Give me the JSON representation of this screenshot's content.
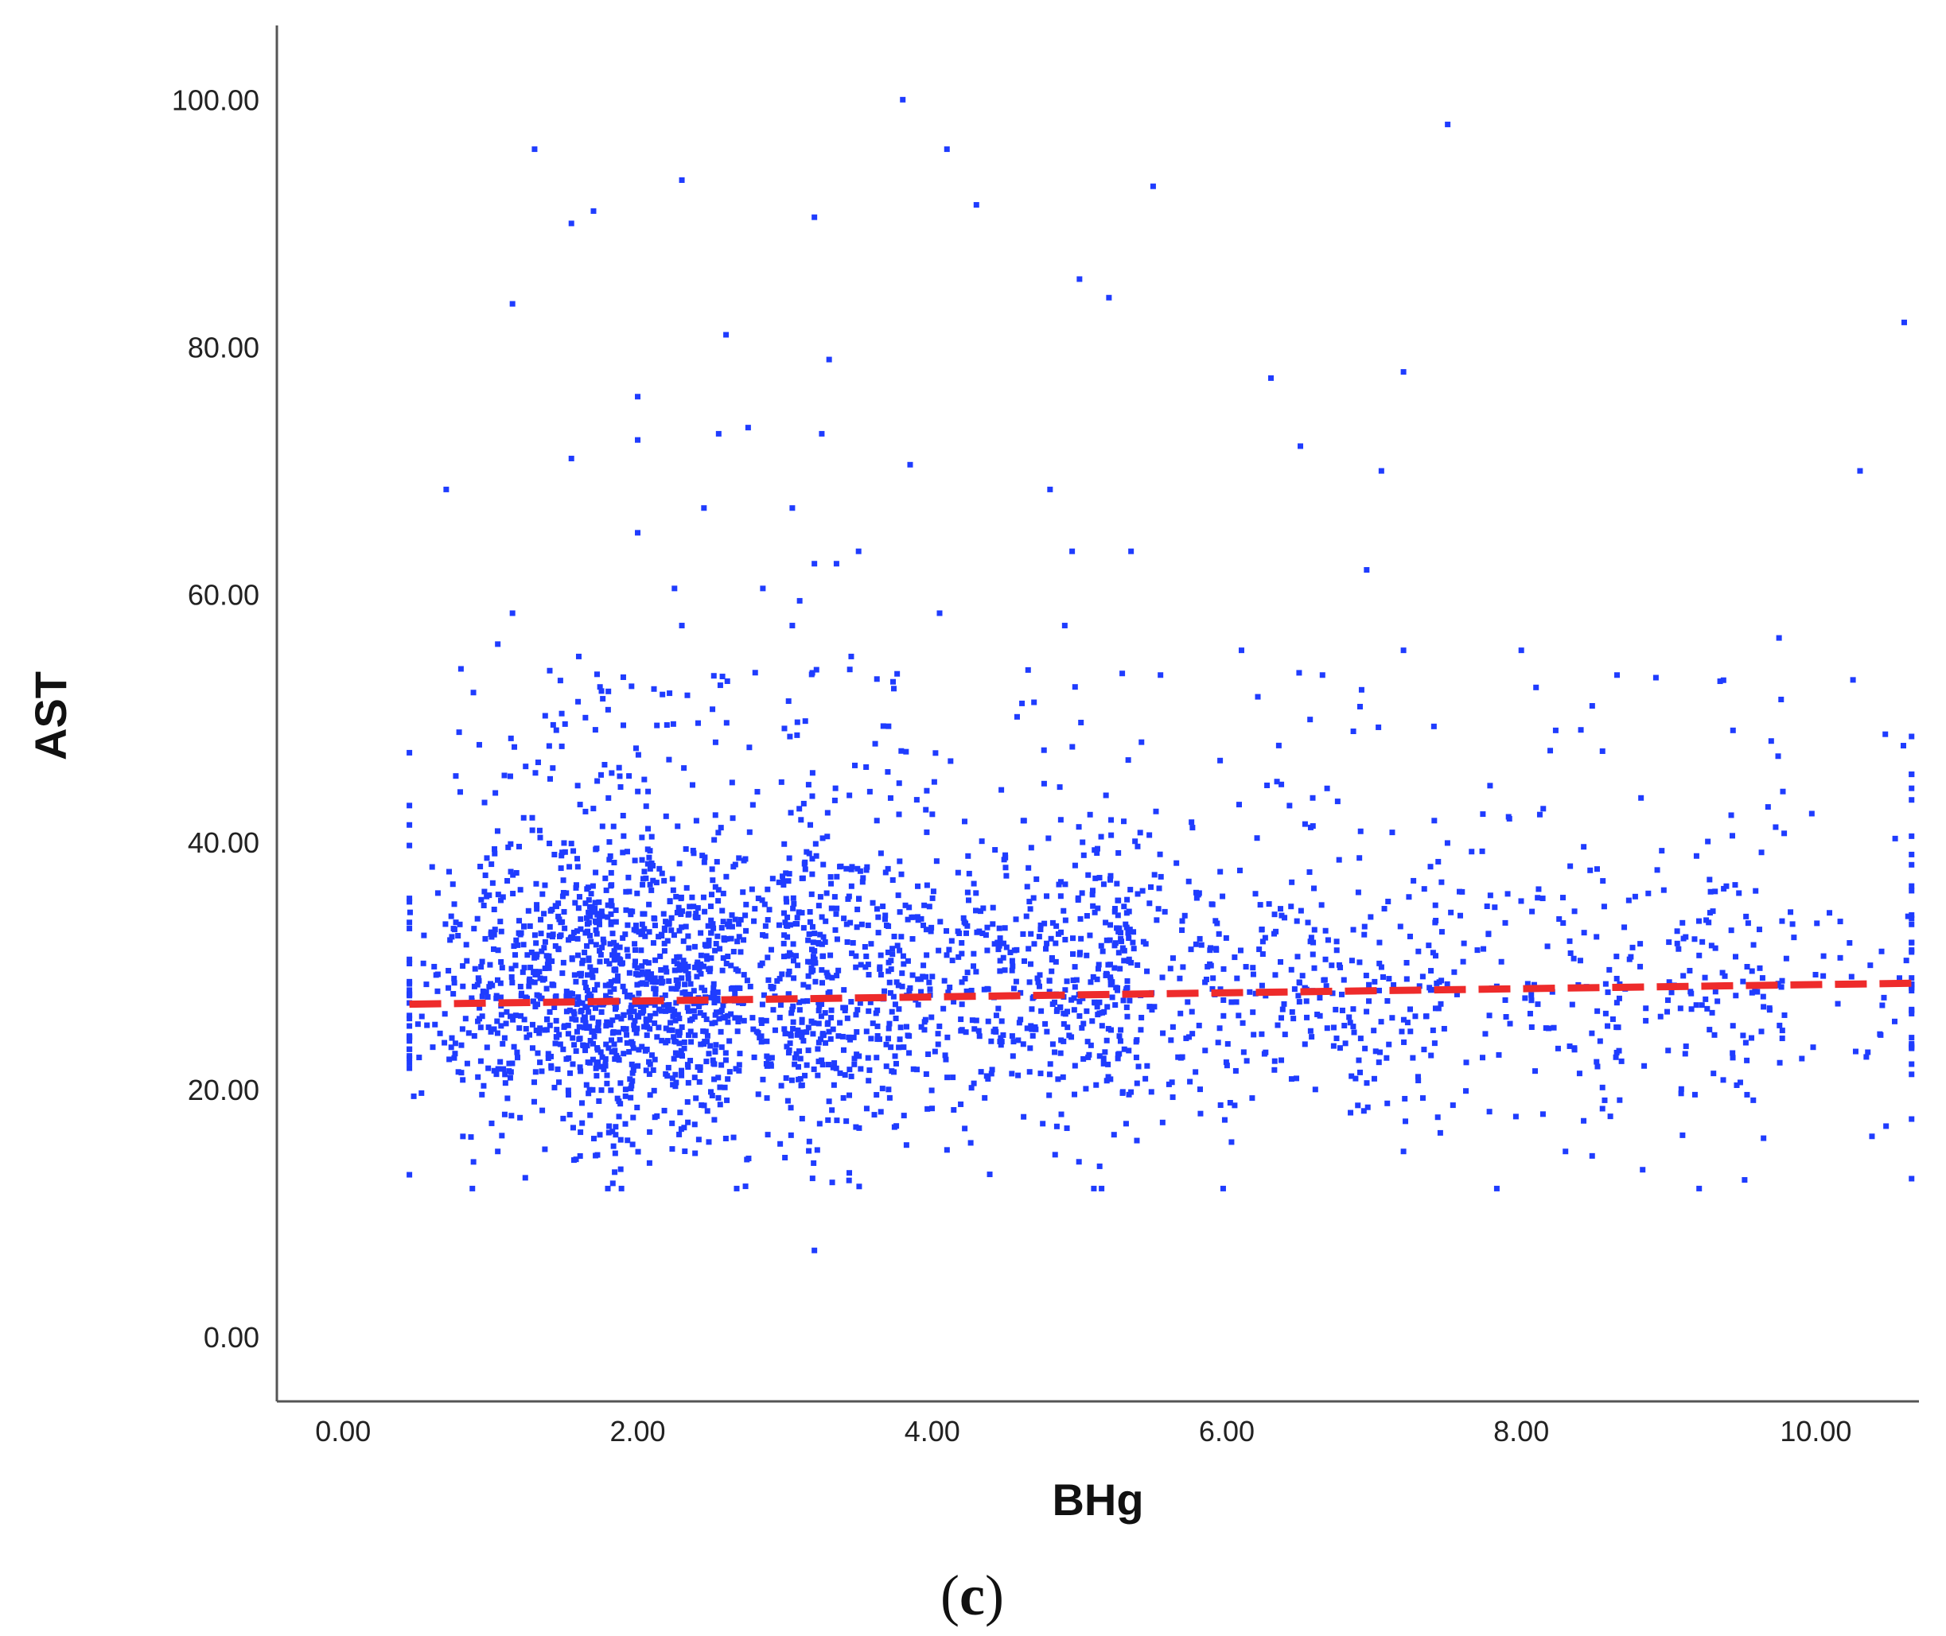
{
  "chart_data": {
    "type": "scatter",
    "xlabel": "BHg",
    "ylabel": "AST",
    "panel_label": {
      "open": "(",
      "letter": "c",
      "close": ")"
    },
    "xlim": [
      -0.45,
      10.7
    ],
    "ylim": [
      -5.2,
      106
    ],
    "x_ticks": [
      0,
      2,
      4,
      6,
      8,
      10
    ],
    "x_tick_labels": [
      "0.00",
      "2.00",
      "4.00",
      "6.00",
      "8.00",
      "10.00"
    ],
    "y_ticks": [
      0,
      20,
      40,
      60,
      80,
      100
    ],
    "y_tick_labels": [
      "0.00",
      "20.00",
      "40.00",
      "60.00",
      "80.00",
      "100.00"
    ],
    "grid": false,
    "legend": "none",
    "point_color": "#1f3cff",
    "fit_line_color": "#ee2b2b",
    "fit_line": {
      "style": "dashed",
      "x": [
        0.45,
        10.7
      ],
      "y": [
        26.9,
        28.6
      ]
    },
    "outlier_points": [
      [
        3.8,
        100.0
      ],
      [
        7.5,
        98.0
      ],
      [
        1.3,
        96.0
      ],
      [
        4.1,
        96.0
      ],
      [
        2.3,
        93.5
      ],
      [
        5.5,
        93.0
      ],
      [
        4.3,
        91.5
      ],
      [
        1.7,
        91.0
      ],
      [
        1.55,
        90.0
      ],
      [
        3.2,
        90.5
      ],
      [
        5.0,
        85.5
      ],
      [
        5.2,
        84.0
      ],
      [
        1.15,
        83.5
      ],
      [
        10.6,
        82.0
      ],
      [
        2.6,
        81.0
      ],
      [
        3.3,
        79.0
      ],
      [
        7.2,
        78.0
      ],
      [
        6.3,
        77.5
      ],
      [
        2.0,
        76.0
      ],
      [
        2.75,
        73.5
      ],
      [
        2.55,
        73.0
      ],
      [
        3.25,
        73.0
      ],
      [
        2.0,
        72.5
      ],
      [
        6.5,
        72.0
      ],
      [
        1.55,
        71.0
      ],
      [
        3.85,
        70.5
      ],
      [
        7.05,
        70.0
      ],
      [
        10.3,
        70.0
      ],
      [
        0.7,
        68.5
      ],
      [
        4.8,
        68.5
      ],
      [
        2.45,
        67.0
      ],
      [
        3.05,
        67.0
      ],
      [
        2.0,
        65.0
      ],
      [
        3.5,
        63.5
      ],
      [
        4.95,
        63.5
      ],
      [
        5.35,
        63.5
      ],
      [
        6.95,
        62.0
      ],
      [
        3.2,
        62.5
      ],
      [
        3.35,
        62.5
      ],
      [
        2.25,
        60.5
      ],
      [
        2.85,
        60.5
      ],
      [
        3.1,
        59.5
      ],
      [
        1.15,
        58.5
      ],
      [
        4.05,
        58.5
      ],
      [
        2.3,
        57.5
      ],
      [
        3.05,
        57.5
      ],
      [
        9.75,
        56.5
      ],
      [
        1.05,
        56.0
      ],
      [
        4.9,
        57.5
      ],
      [
        7.2,
        55.5
      ],
      [
        6.1,
        55.5
      ],
      [
        8.0,
        55.5
      ],
      [
        3.45,
        55.0
      ],
      [
        1.6,
        55.0
      ],
      [
        0.8,
        54.0
      ],
      [
        8.65,
        53.5
      ],
      [
        9.35,
        53.0
      ],
      [
        6.65,
        53.5
      ],
      [
        5.55,
        53.5
      ],
      [
        8.1,
        52.5
      ]
    ]
  }
}
